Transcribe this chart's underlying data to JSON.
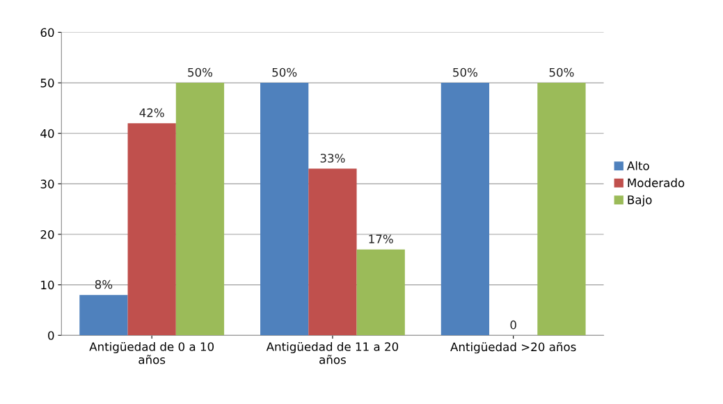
{
  "chart_data": {
    "type": "bar",
    "categories": [
      "Antigüedad de 0 a 10\naños",
      "Antigüedad de 11 a 20\naños",
      "Antigüedad >20 años"
    ],
    "series": [
      {
        "name": "Alto",
        "color": "#4f81bd",
        "values": [
          8,
          50,
          50
        ],
        "value_labels": [
          "8%",
          "50%",
          "50%"
        ]
      },
      {
        "name": "Moderado",
        "color": "#c0504d",
        "values": [
          42,
          33,
          0
        ],
        "value_labels": [
          "42%",
          "33%",
          "0"
        ]
      },
      {
        "name": "Bajo",
        "color": "#9bbb59",
        "values": [
          50,
          17,
          50
        ],
        "value_labels": [
          "50%",
          "17%",
          "50%"
        ]
      }
    ],
    "ylim": [
      0,
      60
    ],
    "yticks": [
      0,
      10,
      20,
      30,
      40,
      50,
      60
    ],
    "grid": "y",
    "legend": "right"
  }
}
